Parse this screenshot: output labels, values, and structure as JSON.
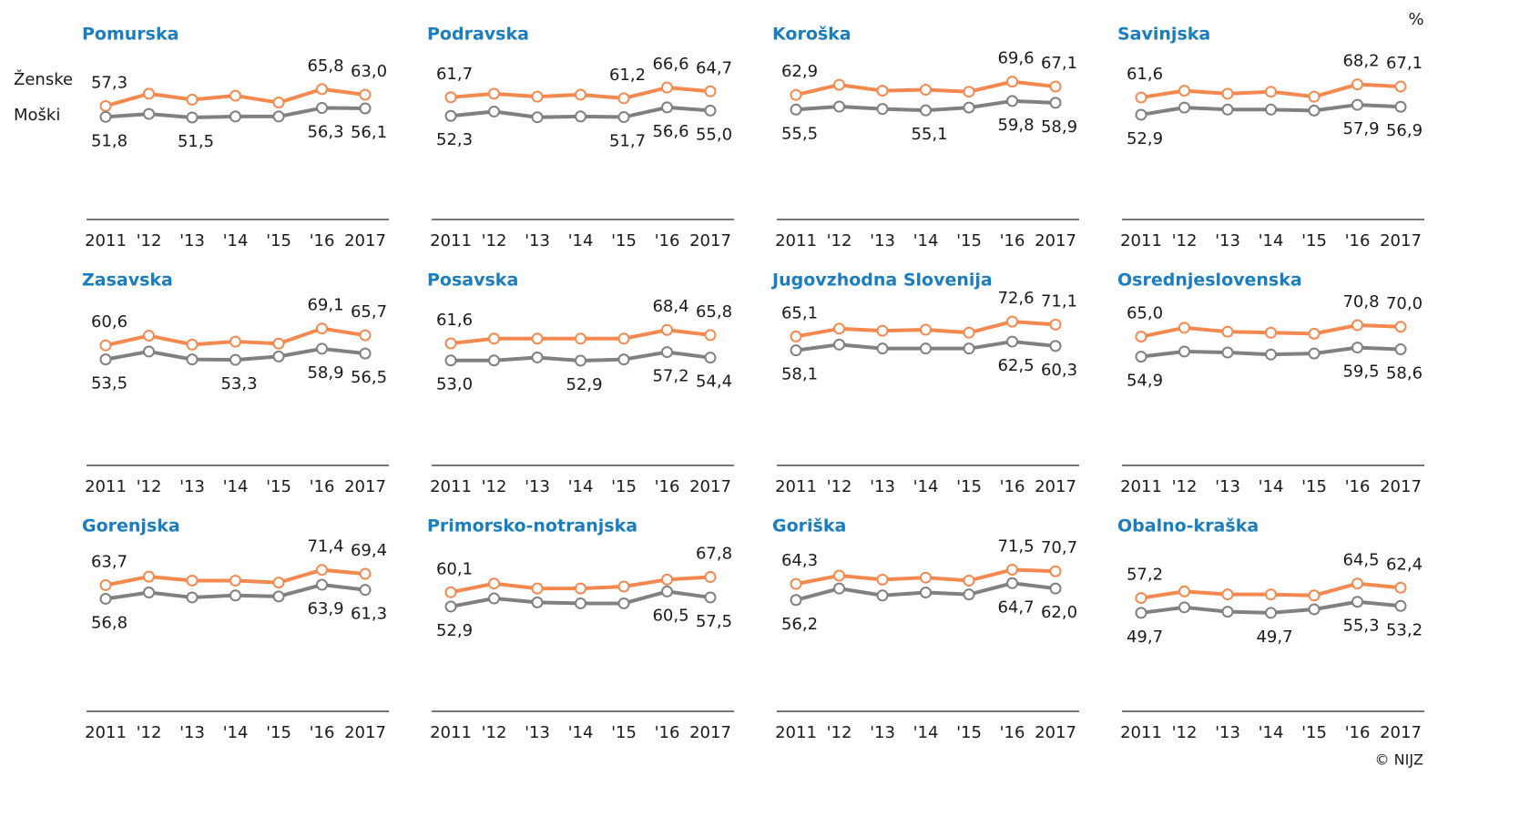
{
  "unit": "%",
  "source": "© NIJZ",
  "chart_data": [
    {
      "type": "line",
      "title": "Pomurska",
      "categories": [
        "2011",
        "'12",
        "'13",
        "'14",
        "'15",
        "'16",
        "2017"
      ],
      "ylim": [
        0,
        80
      ],
      "series": [
        {
          "name": "Ženske",
          "color": "#f4894f",
          "values": [
            57.3,
            63.5,
            60.5,
            62.5,
            59,
            65.8,
            63.0
          ],
          "value_labels": [
            "57,3",
            null,
            null,
            null,
            null,
            "65,8",
            "63,0"
          ]
        },
        {
          "name": "Moški",
          "color": "#808080",
          "values": [
            51.8,
            53.3,
            51.5,
            52,
            52,
            56.3,
            56.1
          ],
          "value_labels": [
            "51,8",
            null,
            "51,5",
            null,
            null,
            "56,3",
            "56,1"
          ]
        }
      ]
    },
    {
      "type": "line",
      "title": "Podravska",
      "categories": [
        "2011",
        "'12",
        "'13",
        "'14",
        "'15",
        "'16",
        "2017"
      ],
      "ylim": [
        0,
        80
      ],
      "series": [
        {
          "color": "#f4894f",
          "values": [
            61.7,
            63.5,
            62,
            63,
            61.2,
            66.6,
            64.7
          ],
          "value_labels": [
            "61,7",
            null,
            null,
            null,
            "61,2",
            "66,6",
            "64,7"
          ]
        },
        {
          "color": "#808080",
          "values": [
            52.3,
            54.5,
            51.6,
            52,
            51.7,
            56.6,
            55.0
          ],
          "value_labels": [
            "52,3",
            null,
            null,
            null,
            "51,7",
            "56,6",
            "55,0"
          ]
        }
      ]
    },
    {
      "type": "line",
      "title": "Koroška",
      "categories": [
        "2011",
        "'12",
        "'13",
        "'14",
        "'15",
        "'16",
        "2017"
      ],
      "ylim": [
        0,
        80
      ],
      "series": [
        {
          "color": "#f4894f",
          "values": [
            62.9,
            68,
            65,
            65.5,
            64.5,
            69.6,
            67.1
          ],
          "value_labels": [
            "62,9",
            null,
            null,
            null,
            null,
            "69,6",
            "67,1"
          ]
        },
        {
          "color": "#808080",
          "values": [
            55.5,
            57,
            55.8,
            55.1,
            56.5,
            59.8,
            58.9
          ],
          "value_labels": [
            "55,5",
            null,
            null,
            "55,1",
            null,
            "59,8",
            "58,9"
          ]
        }
      ]
    },
    {
      "type": "line",
      "title": "Savinjska",
      "categories": [
        "2011",
        "'12",
        "'13",
        "'14",
        "'15",
        "'16",
        "2017"
      ],
      "ylim": [
        0,
        80
      ],
      "series": [
        {
          "color": "#f4894f",
          "values": [
            61.6,
            65,
            63.5,
            64.5,
            62,
            68.2,
            67.1
          ],
          "value_labels": [
            "61,6",
            null,
            null,
            null,
            null,
            "68,2",
            "67,1"
          ]
        },
        {
          "color": "#808080",
          "values": [
            52.9,
            56.5,
            55.5,
            55.5,
            55,
            57.9,
            56.9
          ],
          "value_labels": [
            "52,9",
            null,
            null,
            null,
            null,
            "57,9",
            "56,9"
          ]
        }
      ]
    },
    {
      "type": "line",
      "title": "Zasavska",
      "categories": [
        "2011",
        "'12",
        "'13",
        "'14",
        "'15",
        "'16",
        "2017"
      ],
      "ylim": [
        0,
        80
      ],
      "series": [
        {
          "color": "#f4894f",
          "values": [
            60.6,
            65.5,
            61,
            62.5,
            61.5,
            69.1,
            65.7
          ],
          "value_labels": [
            "60,6",
            null,
            null,
            null,
            null,
            "69,1",
            "65,7"
          ]
        },
        {
          "color": "#808080",
          "values": [
            53.5,
            57.5,
            53.5,
            53.3,
            55,
            58.9,
            56.5
          ],
          "value_labels": [
            "53,5",
            null,
            null,
            "53,3",
            null,
            "58,9",
            "56,5"
          ]
        }
      ]
    },
    {
      "type": "line",
      "title": "Posavska",
      "categories": [
        "2011",
        "'12",
        "'13",
        "'14",
        "'15",
        "'16",
        "2017"
      ],
      "ylim": [
        0,
        80
      ],
      "series": [
        {
          "color": "#f4894f",
          "values": [
            61.6,
            64,
            64,
            64,
            64,
            68.4,
            65.8
          ],
          "value_labels": [
            "61,6",
            null,
            null,
            null,
            null,
            "68,4",
            "65,8"
          ]
        },
        {
          "color": "#808080",
          "values": [
            53.0,
            53.0,
            54.5,
            52.9,
            53.5,
            57.2,
            54.4
          ],
          "value_labels": [
            "53,0",
            null,
            null,
            "52,9",
            null,
            "57,2",
            "54,4"
          ]
        }
      ]
    },
    {
      "type": "line",
      "title": "Jugovzhodna Slovenija",
      "categories": [
        "2011",
        "'12",
        "'13",
        "'14",
        "'15",
        "'16",
        "2017"
      ],
      "ylim": [
        0,
        80
      ],
      "series": [
        {
          "color": "#f4894f",
          "values": [
            65.1,
            69,
            68,
            68.5,
            67,
            72.6,
            71.1
          ],
          "value_labels": [
            "65,1",
            null,
            null,
            null,
            null,
            "72,6",
            "71,1"
          ]
        },
        {
          "color": "#808080",
          "values": [
            58.1,
            61,
            59,
            59,
            59,
            62.5,
            60.3
          ],
          "value_labels": [
            "58,1",
            null,
            null,
            null,
            null,
            "62,5",
            "60,3"
          ]
        }
      ]
    },
    {
      "type": "line",
      "title": "Osrednjeslovenska",
      "categories": [
        "2011",
        "'12",
        "'13",
        "'14",
        "'15",
        "'16",
        "2017"
      ],
      "ylim": [
        0,
        80
      ],
      "series": [
        {
          "color": "#f4894f",
          "values": [
            65.0,
            69.5,
            67.5,
            67,
            66.5,
            70.8,
            70.0
          ],
          "value_labels": [
            "65,0",
            null,
            null,
            null,
            null,
            "70,8",
            "70,0"
          ]
        },
        {
          "color": "#808080",
          "values": [
            54.9,
            57.5,
            57,
            56,
            56.5,
            59.5,
            58.6
          ],
          "value_labels": [
            "54,9",
            null,
            null,
            null,
            null,
            "59,5",
            "58,6"
          ]
        }
      ]
    },
    {
      "type": "line",
      "title": "Gorenjska",
      "categories": [
        "2011",
        "'12",
        "'13",
        "'14",
        "'15",
        "'16",
        "2017"
      ],
      "ylim": [
        0,
        80
      ],
      "series": [
        {
          "color": "#f4894f",
          "values": [
            63.7,
            68,
            66,
            66,
            65,
            71.4,
            69.4
          ],
          "value_labels": [
            "63,7",
            null,
            null,
            null,
            null,
            "71,4",
            "69,4"
          ]
        },
        {
          "color": "#808080",
          "values": [
            56.8,
            60,
            57.5,
            58.5,
            58,
            63.9,
            61.3
          ],
          "value_labels": [
            "56,8",
            null,
            null,
            null,
            null,
            "63,9",
            "61,3"
          ]
        }
      ]
    },
    {
      "type": "line",
      "title": "Primorsko-notranjska",
      "categories": [
        "2011",
        "'12",
        "'13",
        "'14",
        "'15",
        "'16",
        "2017"
      ],
      "ylim": [
        0,
        80
      ],
      "series": [
        {
          "color": "#f4894f",
          "values": [
            60.1,
            64.5,
            62,
            62,
            63,
            66.5,
            67.8
          ],
          "value_labels": [
            "60,1",
            null,
            null,
            null,
            null,
            null,
            "67,8"
          ]
        },
        {
          "color": "#808080",
          "values": [
            52.9,
            57,
            55,
            54.5,
            54.5,
            60.5,
            57.5
          ],
          "value_labels": [
            "52,9",
            null,
            null,
            null,
            null,
            "60,5",
            "57,5"
          ]
        }
      ]
    },
    {
      "type": "line",
      "title": "Goriška",
      "categories": [
        "2011",
        "'12",
        "'13",
        "'14",
        "'15",
        "'16",
        "2017"
      ],
      "ylim": [
        0,
        80
      ],
      "series": [
        {
          "color": "#f4894f",
          "values": [
            64.3,
            68.5,
            66.5,
            67.5,
            66,
            71.5,
            70.7
          ],
          "value_labels": [
            "64,3",
            null,
            null,
            null,
            null,
            "71,5",
            "70,7"
          ]
        },
        {
          "color": "#808080",
          "values": [
            56.2,
            62,
            58.5,
            60,
            59,
            64.7,
            62.0
          ],
          "value_labels": [
            "56,2",
            null,
            null,
            null,
            null,
            "64,7",
            "62,0"
          ]
        }
      ]
    },
    {
      "type": "line",
      "title": "Obalno-kraška",
      "categories": [
        "2011",
        "'12",
        "'13",
        "'14",
        "'15",
        "'16",
        "2017"
      ],
      "ylim": [
        0,
        80
      ],
      "series": [
        {
          "color": "#f4894f",
          "values": [
            57.2,
            60.5,
            59,
            59,
            58.5,
            64.5,
            62.4
          ],
          "value_labels": [
            "57,2",
            null,
            null,
            null,
            null,
            "64,5",
            "62,4"
          ]
        },
        {
          "color": "#808080",
          "values": [
            49.7,
            52.5,
            50.3,
            49.7,
            51.5,
            55.3,
            53.2
          ],
          "value_labels": [
            "49,7",
            null,
            null,
            "49,7",
            null,
            "55,3",
            "53,2"
          ]
        }
      ]
    }
  ]
}
